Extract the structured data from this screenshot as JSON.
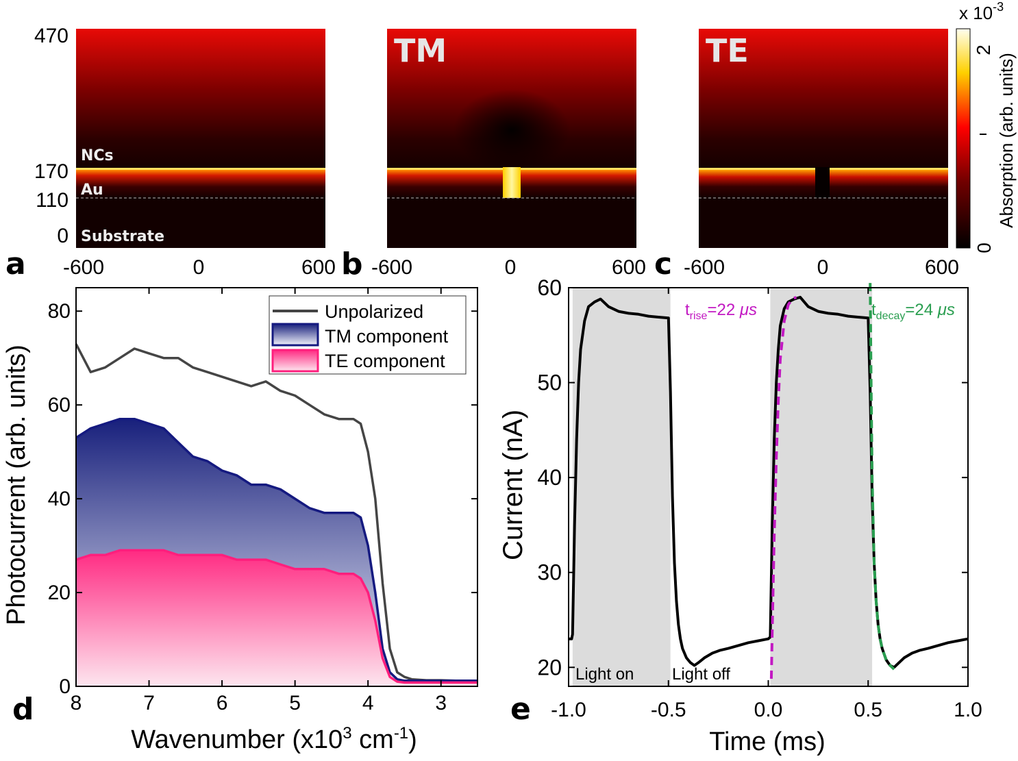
{
  "colors": {
    "unpolarized": "#454545",
    "tm": "#151a80",
    "te": "#ff1f7d",
    "rise_fit": "#c219c2",
    "decay_fit": "#2a9e50",
    "shade": "#dcdcdc"
  },
  "panel_letters": {
    "a": "a",
    "b": "b",
    "c": "c",
    "d": "d",
    "e": "e"
  },
  "maps": {
    "y_ticks": [
      "470",
      "170",
      "110",
      "0"
    ],
    "x_ticks": [
      "-600",
      "0",
      "600"
    ],
    "a_layer_labels": [
      "NCs",
      "Au",
      "Substrate"
    ],
    "b_title": "TM",
    "c_title": "TE",
    "colorbar": {
      "exponent_prefix": "x 10",
      "exponent_power": "-3",
      "ticks": [
        "2",
        "1",
        "0"
      ],
      "label": "Absorption (arb. units)"
    }
  },
  "chart_data": [
    {
      "panel": "d",
      "type": "area",
      "xlabel_prefix": "Wavenumber (x10",
      "xlabel_power1": "3",
      "xlabel_mid": " cm",
      "xlabel_power2": "-1",
      "xlabel_suffix": ")",
      "ylabel": "Photocurrent (arb. units)",
      "xlim": [
        8,
        2.5
      ],
      "ylim": [
        0,
        85
      ],
      "x_ticks": [
        8,
        7,
        6,
        5,
        4,
        3
      ],
      "y_ticks": [
        0,
        20,
        40,
        60,
        80
      ],
      "legend": [
        "Unpolarized",
        "TM component",
        "TE component"
      ],
      "series": [
        {
          "name": "Unpolarized",
          "x": [
            8.0,
            7.8,
            7.6,
            7.4,
            7.2,
            7.0,
            6.8,
            6.6,
            6.4,
            6.2,
            6.0,
            5.8,
            5.6,
            5.4,
            5.2,
            5.0,
            4.8,
            4.6,
            4.4,
            4.2,
            4.1,
            4.0,
            3.9,
            3.8,
            3.7,
            3.6,
            3.5,
            3.4,
            3.2,
            3.0,
            2.8,
            2.6,
            2.5
          ],
          "y": [
            73,
            67,
            68,
            70,
            72,
            71,
            70,
            70,
            68,
            67,
            66,
            65,
            64,
            65,
            63,
            62,
            60,
            58,
            57,
            57,
            56,
            50,
            40,
            22,
            8,
            3,
            2,
            1.5,
            1.3,
            1.3,
            1.2,
            1.2,
            1.2
          ]
        },
        {
          "name": "TM component",
          "x": [
            8.0,
            7.8,
            7.6,
            7.4,
            7.2,
            7.0,
            6.8,
            6.6,
            6.4,
            6.2,
            6.0,
            5.8,
            5.6,
            5.4,
            5.2,
            5.0,
            4.8,
            4.6,
            4.4,
            4.2,
            4.1,
            4.0,
            3.9,
            3.8,
            3.7,
            3.6,
            3.5,
            3.4,
            3.2,
            3.0,
            2.8,
            2.6,
            2.5
          ],
          "y": [
            53,
            55,
            56,
            57,
            57,
            56,
            55,
            52,
            49,
            48,
            46,
            45,
            43,
            43,
            42,
            40,
            38,
            37,
            37,
            37,
            36,
            30,
            20,
            8,
            3,
            1.5,
            1.2,
            1.2,
            1.2,
            1.2,
            1.2,
            1.2,
            1.2
          ]
        },
        {
          "name": "TE component",
          "x": [
            8.0,
            7.8,
            7.6,
            7.4,
            7.2,
            7.0,
            6.8,
            6.6,
            6.4,
            6.2,
            6.0,
            5.8,
            5.6,
            5.4,
            5.2,
            5.0,
            4.8,
            4.6,
            4.4,
            4.2,
            4.1,
            4.0,
            3.9,
            3.8,
            3.7,
            3.6,
            3.5,
            3.4,
            3.2,
            3.0,
            2.8,
            2.6,
            2.5
          ],
          "y": [
            27,
            28,
            28,
            29,
            29,
            29,
            29,
            28,
            28,
            28,
            28,
            27,
            27,
            27,
            26,
            25,
            25,
            25,
            24,
            24,
            23,
            20,
            14,
            6,
            2,
            1,
            0.8,
            0.8,
            0.8,
            0.8,
            0.8,
            0.8,
            0.8
          ]
        }
      ]
    },
    {
      "panel": "e",
      "type": "line",
      "xlabel": "Time (ms)",
      "ylabel": "Current (nA)",
      "xlim": [
        -1.0,
        1.0
      ],
      "ylim": [
        18,
        60
      ],
      "x_ticks": [
        "-1.0",
        "-0.5",
        "0.0",
        "0.5",
        "1.0"
      ],
      "y_ticks": [
        20,
        30,
        40,
        50,
        60
      ],
      "shaded_intervals": [
        [
          -0.98,
          -0.49
        ],
        [
          0.01,
          0.52
        ]
      ],
      "region_labels": [
        "Light on",
        "Light off"
      ],
      "annotations": {
        "rise": {
          "base": "t",
          "sub": "rise",
          "value": "=22 ",
          "unit": "μs"
        },
        "decay": {
          "base": "t",
          "sub": "decay",
          "value": "=24 ",
          "unit": "μs"
        }
      },
      "series": [
        {
          "name": "Current",
          "x": [
            -1.0,
            -0.985,
            -0.98,
            -0.97,
            -0.96,
            -0.95,
            -0.94,
            -0.92,
            -0.9,
            -0.87,
            -0.84,
            -0.8,
            -0.75,
            -0.7,
            -0.65,
            -0.6,
            -0.55,
            -0.5,
            -0.49,
            -0.48,
            -0.47,
            -0.46,
            -0.45,
            -0.44,
            -0.43,
            -0.41,
            -0.39,
            -0.37,
            -0.35,
            -0.32,
            -0.28,
            -0.24,
            -0.2,
            -0.15,
            -0.1,
            -0.05,
            0.0,
            0.01,
            0.02,
            0.03,
            0.04,
            0.05,
            0.06,
            0.08,
            0.1,
            0.13,
            0.16,
            0.2,
            0.25,
            0.3,
            0.35,
            0.4,
            0.45,
            0.5,
            0.51,
            0.52,
            0.53,
            0.54,
            0.55,
            0.56,
            0.57,
            0.59,
            0.61,
            0.63,
            0.65,
            0.68,
            0.72,
            0.76,
            0.8,
            0.85,
            0.9,
            0.95,
            1.0
          ],
          "y": [
            23.0,
            23.0,
            23.5,
            35.0,
            44.0,
            50.0,
            53.5,
            56.5,
            58.0,
            58.5,
            58.8,
            58.0,
            57.5,
            57.3,
            57.2,
            57.0,
            56.9,
            56.8,
            49.0,
            38.0,
            31.0,
            27.0,
            24.5,
            23.0,
            22.0,
            21.0,
            20.5,
            20.2,
            20.5,
            21.0,
            21.5,
            21.8,
            22.0,
            22.3,
            22.6,
            22.8,
            23.0,
            23.2,
            35.0,
            44.0,
            50.0,
            53.5,
            56.0,
            57.8,
            58.5,
            58.8,
            59.0,
            58.0,
            57.5,
            57.3,
            57.2,
            57.0,
            56.9,
            56.8,
            49.0,
            38.0,
            31.0,
            27.0,
            24.5,
            23.0,
            22.0,
            20.8,
            20.2,
            20.0,
            20.4,
            21.0,
            21.5,
            21.8,
            22.0,
            22.3,
            22.6,
            22.8,
            23.0
          ]
        },
        {
          "name": "Rise fit",
          "x": [
            0.015,
            0.02,
            0.03,
            0.04,
            0.05,
            0.06,
            0.08,
            0.1,
            0.12,
            0.14
          ],
          "y": [
            18.8,
            24.0,
            34.0,
            42.0,
            48.0,
            52.5,
            56.5,
            58.2,
            58.8,
            59.0
          ]
        },
        {
          "name": "Decay fit",
          "x": [
            0.51,
            0.515,
            0.52,
            0.53,
            0.54,
            0.55,
            0.56,
            0.57,
            0.59,
            0.61,
            0.63
          ],
          "y": [
            60.5,
            50.0,
            40.0,
            31.0,
            27.0,
            24.5,
            23.0,
            22.0,
            20.8,
            20.2,
            19.8
          ]
        }
      ]
    }
  ]
}
